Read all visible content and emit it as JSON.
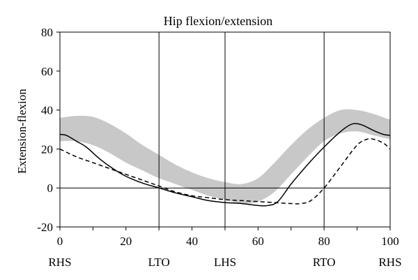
{
  "chart_data": {
    "type": "line",
    "title": "Hip flexion/extension",
    "xlabel": "",
    "ylabel": "Extension-flexion",
    "xlim": [
      0,
      100
    ],
    "ylim": [
      -20,
      80
    ],
    "grid": false,
    "x_ticks": [
      0,
      20,
      40,
      60,
      80,
      100
    ],
    "y_ticks": [
      -20,
      0,
      20,
      40,
      60,
      80
    ],
    "reference_line_y": 0,
    "events": [
      {
        "label": "RHS",
        "x": 0
      },
      {
        "label": "LTO",
        "x": 30
      },
      {
        "label": "LHS",
        "x": 50
      },
      {
        "label": "RTO",
        "x": 80
      },
      {
        "label": "RHS",
        "x": 100
      }
    ],
    "vertical_lines_at": [
      30,
      50,
      80
    ],
    "band": {
      "x": [
        0,
        5,
        10,
        15,
        20,
        25,
        30,
        35,
        40,
        45,
        50,
        55,
        60,
        65,
        70,
        75,
        80,
        85,
        90,
        95,
        100
      ],
      "upper": [
        36,
        37,
        36.5,
        33,
        28,
        22,
        17,
        12,
        8,
        5,
        3,
        2,
        5,
        13,
        22,
        30,
        36,
        40,
        40,
        38,
        35
      ],
      "lower": [
        24,
        24,
        22,
        18,
        13,
        9,
        5,
        2,
        -1,
        -4,
        -6,
        -8,
        -7,
        -2,
        7,
        16,
        24,
        28,
        29,
        27,
        25
      ]
    },
    "series": [
      {
        "style": "solid",
        "x": [
          0,
          2,
          5,
          8,
          12,
          16,
          20,
          25,
          30,
          35,
          40,
          45,
          50,
          55,
          60,
          63,
          66,
          70,
          75,
          80,
          85,
          88,
          90,
          92,
          95,
          98,
          100
        ],
        "values": [
          27.5,
          27,
          24,
          21,
          15,
          10,
          6,
          2.5,
          0,
          -2.5,
          -4.5,
          -6.5,
          -7.5,
          -8,
          -9,
          -9,
          -7,
          2,
          12,
          21,
          29,
          32.5,
          33,
          32,
          29.5,
          27.5,
          27
        ]
      },
      {
        "style": "dashed",
        "x": [
          0,
          5,
          10,
          15,
          20,
          25,
          30,
          35,
          40,
          45,
          50,
          55,
          60,
          65,
          70,
          73,
          76,
          80,
          85,
          90,
          93,
          95,
          98,
          100
        ],
        "values": [
          20,
          16,
          13,
          10,
          7,
          4,
          1,
          -2,
          -4,
          -5,
          -6,
          -6.5,
          -7,
          -7.5,
          -8,
          -8,
          -6.5,
          0,
          11,
          22,
          25,
          25,
          23,
          20
        ]
      }
    ]
  }
}
